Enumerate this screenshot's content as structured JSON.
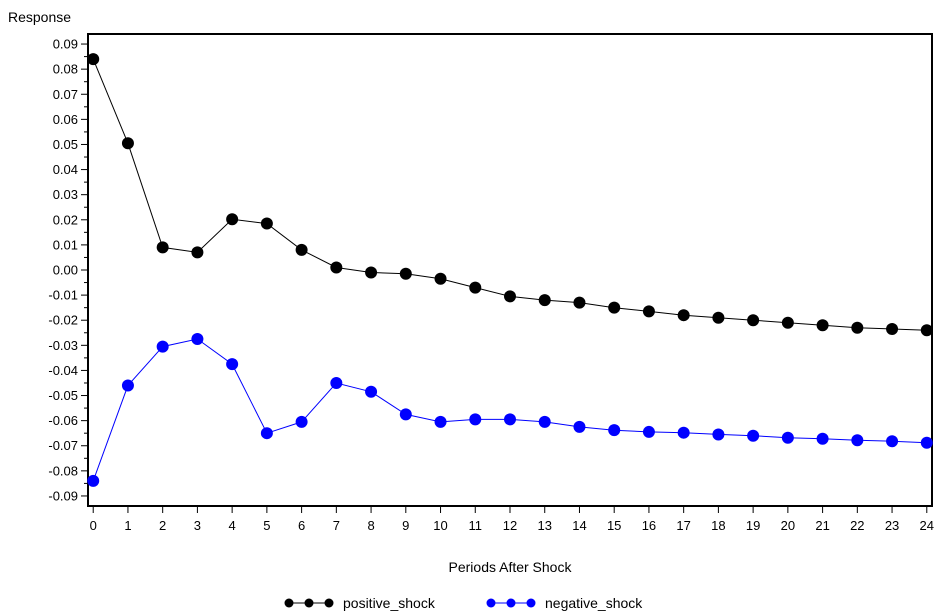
{
  "chart_data": {
    "type": "line",
    "title": "",
    "ylabel": "Response",
    "xlabel": "Periods After Shock",
    "x": [
      0,
      1,
      2,
      3,
      4,
      5,
      6,
      7,
      8,
      9,
      10,
      11,
      12,
      13,
      14,
      15,
      16,
      17,
      18,
      19,
      20,
      21,
      22,
      23,
      24
    ],
    "ylim": [
      -0.094,
      0.094
    ],
    "xlim": [
      -0.15,
      24.15
    ],
    "yticks": [
      "0.09",
      "0.08",
      "0.07",
      "0.06",
      "0.05",
      "0.04",
      "0.03",
      "0.02",
      "0.01",
      "0.00",
      "-0.01",
      "-0.02",
      "-0.03",
      "-0.04",
      "-0.05",
      "-0.06",
      "-0.07",
      "-0.08",
      "-0.09"
    ],
    "ytick_values": [
      0.09,
      0.08,
      0.07,
      0.06,
      0.05,
      0.04,
      0.03,
      0.02,
      0.01,
      0.0,
      -0.01,
      -0.02,
      -0.03,
      -0.04,
      -0.05,
      -0.06,
      -0.07,
      -0.08,
      -0.09
    ],
    "xticks": [
      "0",
      "1",
      "2",
      "3",
      "4",
      "5",
      "6",
      "7",
      "8",
      "9",
      "10",
      "11",
      "12",
      "13",
      "14",
      "15",
      "16",
      "17",
      "18",
      "19",
      "20",
      "21",
      "22",
      "23",
      "24"
    ],
    "grid": false,
    "legend_position": "bottom-center",
    "series": [
      {
        "name": "positive_shock",
        "color": "#000000",
        "values": [
          0.084,
          0.0505,
          0.009,
          0.007,
          0.0202,
          0.0185,
          0.008,
          0.001,
          -0.001,
          -0.0015,
          -0.0035,
          -0.007,
          -0.0105,
          -0.012,
          -0.013,
          -0.015,
          -0.0165,
          -0.018,
          -0.019,
          -0.02,
          -0.021,
          -0.022,
          -0.023,
          -0.0235,
          -0.024
        ]
      },
      {
        "name": "negative_shock",
        "color": "#0000FF",
        "values": [
          -0.084,
          -0.046,
          -0.0305,
          -0.0275,
          -0.0375,
          -0.065,
          -0.0605,
          -0.045,
          -0.0485,
          -0.0575,
          -0.0605,
          -0.0595,
          -0.0595,
          -0.0605,
          -0.0625,
          -0.0638,
          -0.0645,
          -0.0648,
          -0.0655,
          -0.066,
          -0.0668,
          -0.0672,
          -0.0678,
          -0.0682,
          -0.0688
        ]
      }
    ]
  }
}
